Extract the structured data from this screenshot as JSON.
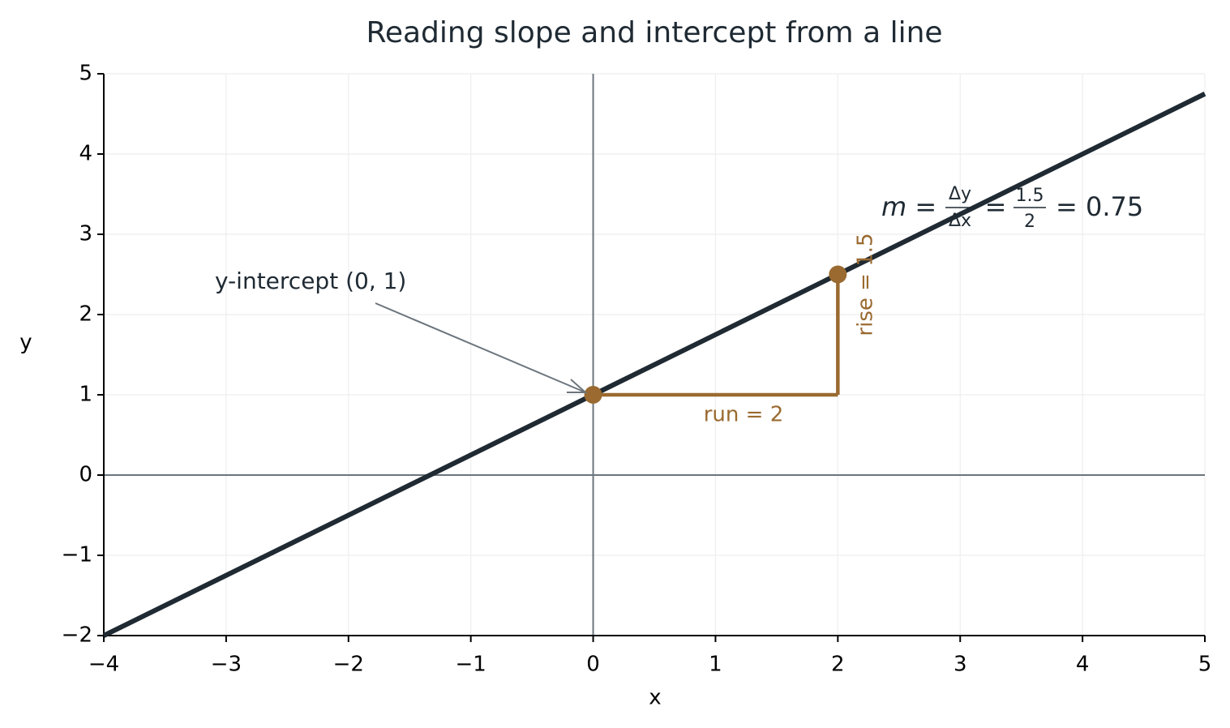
{
  "chart_data": {
    "type": "line",
    "title": "Reading slope and intercept from a line",
    "xlabel": "x",
    "ylabel": "y",
    "xlim": [
      -4,
      5
    ],
    "ylim": [
      -2,
      5
    ],
    "xticks": [
      {
        "value": -4,
        "label": "−4"
      },
      {
        "value": -3,
        "label": "−3"
      },
      {
        "value": -2,
        "label": "−2"
      },
      {
        "value": -1,
        "label": "−1"
      },
      0,
      1,
      2,
      3,
      4,
      5
    ],
    "yticks": [
      {
        "value": -2,
        "label": "−2"
      },
      {
        "value": -1,
        "label": "−1"
      },
      0,
      1,
      2,
      3,
      4,
      5
    ],
    "grid": true,
    "line": {
      "x": [
        -4,
        5
      ],
      "values": [
        -2,
        4.75
      ],
      "color": "#1f2a33"
    },
    "segments": [
      {
        "x": [
          0,
          2
        ],
        "values": [
          1,
          1
        ],
        "color": "#9a6a30"
      },
      {
        "x": [
          2,
          2
        ],
        "values": [
          1,
          2.5
        ],
        "color": "#9a6a30"
      }
    ],
    "points": {
      "x": [
        0,
        2
      ],
      "values": [
        1,
        2.5
      ],
      "color": "#9a6a30"
    },
    "annotations": {
      "intercept": "y-intercept (0, 1)",
      "run": "run = 2",
      "rise": "rise = 1.5",
      "formula": [
        "m =",
        "Δy",
        "Δx",
        "=",
        "1.5",
        "2",
        "= 0.75"
      ]
    }
  }
}
